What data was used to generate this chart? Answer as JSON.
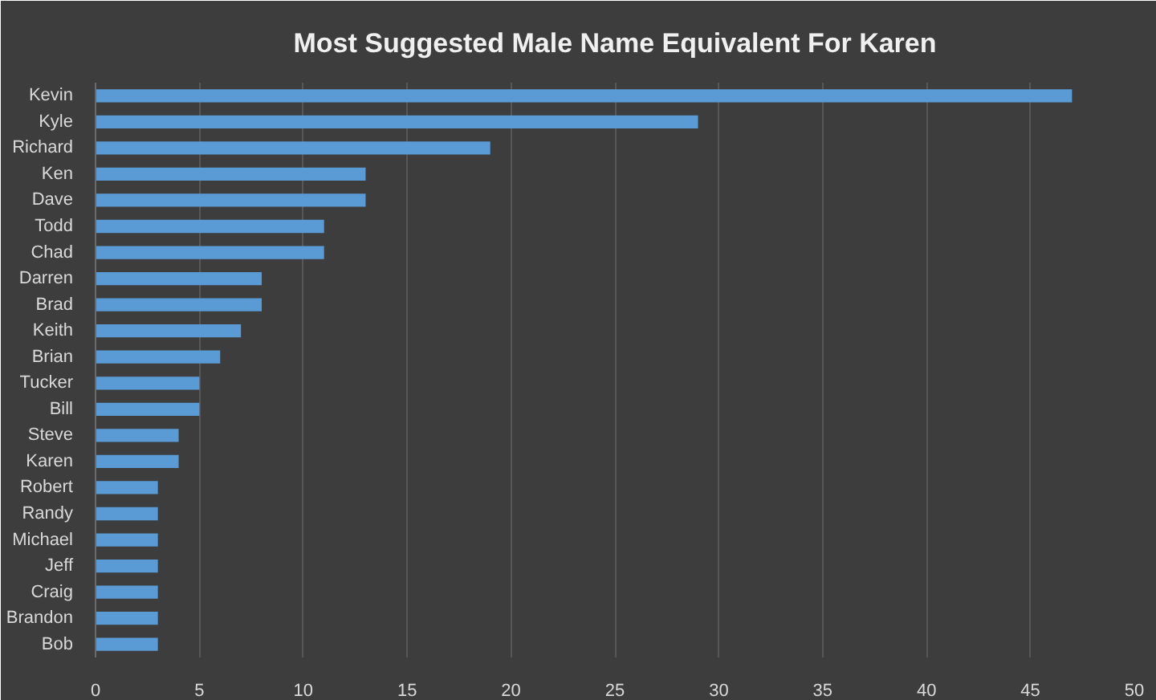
{
  "chart_data": {
    "type": "bar",
    "orientation": "horizontal",
    "title": "Most Suggested Male Name Equivalent For Karen",
    "categories": [
      "Kevin",
      "Kyle",
      "Richard",
      "Ken",
      "Dave",
      "Todd",
      "Chad",
      "Darren",
      "Brad",
      "Keith",
      "Brian",
      "Tucker",
      "Bill",
      "Steve",
      "Karen",
      "Robert",
      "Randy",
      "Michael",
      "Jeff",
      "Craig",
      "Brandon",
      "Bob"
    ],
    "values": [
      47,
      29,
      19,
      13,
      13,
      11,
      11,
      8,
      8,
      7,
      6,
      5,
      5,
      4,
      4,
      3,
      3,
      3,
      3,
      3,
      3,
      3
    ],
    "color": "#5b9bd5",
    "xlim": [
      0,
      50
    ],
    "xticks": [
      0,
      5,
      10,
      15,
      20,
      25,
      30,
      35,
      40,
      45,
      50
    ],
    "grid": "x"
  }
}
